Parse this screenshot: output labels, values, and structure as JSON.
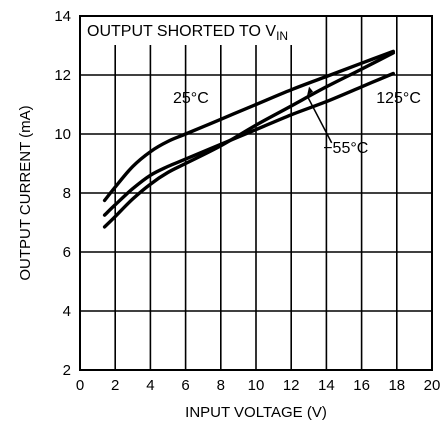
{
  "chart_data": {
    "type": "line",
    "title": "",
    "xlabel": "INPUT VOLTAGE (V)",
    "ylabel": "OUTPUT CURRENT (mA)",
    "xlim": [
      0,
      20
    ],
    "ylim": [
      2,
      14
    ],
    "xticks": [
      "0",
      "2",
      "4",
      "6",
      "8",
      "10",
      "12",
      "14",
      "16",
      "18",
      "20"
    ],
    "yticks": [
      "2",
      "4",
      "6",
      "8",
      "10",
      "12",
      "14"
    ],
    "grid": true,
    "annotation": {
      "main": "OUTPUT SHORTED TO V",
      "subscript": "IN"
    },
    "series": [
      {
        "name": "25°C",
        "x": [
          1.4,
          2,
          3,
          4,
          5,
          6,
          8,
          10,
          12,
          14,
          16,
          17.8
        ],
        "y": [
          7.75,
          8.2,
          8.9,
          9.4,
          9.75,
          10.0,
          10.5,
          11.0,
          11.5,
          11.95,
          12.4,
          12.8
        ]
      },
      {
        "name": "125°C",
        "x": [
          1.4,
          2,
          3,
          4,
          5,
          6,
          8,
          10,
          12,
          14,
          16,
          17.8
        ],
        "y": [
          7.25,
          7.6,
          8.15,
          8.6,
          8.9,
          9.15,
          9.65,
          10.15,
          10.65,
          11.1,
          11.6,
          12.05
        ]
      },
      {
        "name": "−55°C",
        "x": [
          1.4,
          2,
          3,
          4,
          5,
          6,
          8,
          10,
          12,
          14,
          16,
          17.8
        ],
        "y": [
          6.85,
          7.2,
          7.8,
          8.3,
          8.7,
          9.0,
          9.6,
          10.3,
          10.95,
          11.6,
          12.2,
          12.75
        ]
      }
    ]
  }
}
